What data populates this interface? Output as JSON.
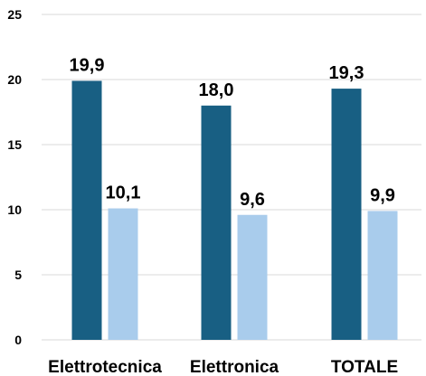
{
  "chart_data": {
    "type": "bar",
    "title": "",
    "xlabel": "",
    "ylabel": "",
    "categories": [
      "Elettrotecnica",
      "Elettronica",
      "TOTALE"
    ],
    "series": [
      {
        "values": [
          19.9,
          18.0,
          19.3
        ],
        "labels": [
          "19,9",
          "18,0",
          "19,3"
        ],
        "color": "#185f83"
      },
      {
        "values": [
          10.1,
          9.6,
          9.9
        ],
        "labels": [
          "10,1",
          "9,6",
          "9,9"
        ],
        "color": "#a9ccec"
      }
    ],
    "ylim": [
      0,
      25
    ],
    "yticks": [
      0,
      5,
      10,
      15,
      20,
      25
    ],
    "ytick_labels": [
      "0",
      "5",
      "10",
      "15",
      "20",
      "25"
    ],
    "grid": true,
    "legend": "none"
  }
}
